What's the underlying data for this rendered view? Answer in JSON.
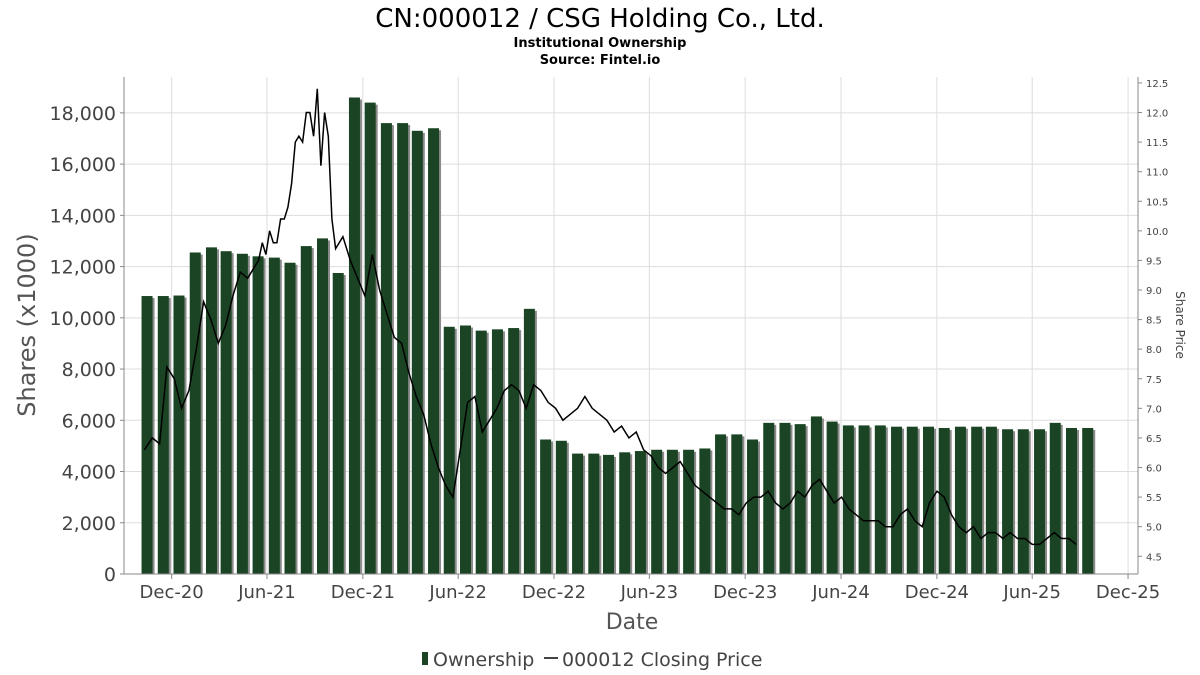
{
  "chart_data": {
    "type": "bar",
    "title": "CN:000012 / CSG Holding Co., Ltd.",
    "subtitle_lines": [
      "Institutional Ownership",
      "Source: Fintel.io"
    ],
    "xlabel": "Date",
    "ylabel": "Shares (x1000)",
    "y2label": "Share Price",
    "ylim": [
      0,
      19400
    ],
    "y2lim": [
      4.2,
      12.6
    ],
    "xlim": [
      "2020-09-01",
      "2025-12-20"
    ],
    "y_ticks": [
      0,
      2000,
      4000,
      6000,
      8000,
      10000,
      12000,
      14000,
      16000,
      18000
    ],
    "y_tick_labels": [
      "0",
      "2,000",
      "4,000",
      "6,000",
      "8,000",
      "10,000",
      "12,000",
      "14,000",
      "16,000",
      "18,000"
    ],
    "y2_ticks": [
      4.5,
      5.0,
      5.5,
      6.0,
      6.5,
      7.0,
      7.5,
      8.0,
      8.5,
      9.0,
      9.5,
      10.0,
      10.5,
      11.0,
      11.5,
      12.0,
      12.5
    ],
    "y2_tick_labels": [
      "4.5",
      "5.0",
      "5.5",
      "6.0",
      "6.5",
      "7.0",
      "7.5",
      "8.0",
      "8.5",
      "9.0",
      "9.5",
      "10.0",
      "10.5",
      "11.0",
      "11.5",
      "12.0",
      "12.5"
    ],
    "x_ticks": [
      "2020-12-01",
      "2021-06-01",
      "2021-12-01",
      "2022-06-01",
      "2022-12-01",
      "2023-06-01",
      "2023-12-01",
      "2024-06-01",
      "2024-12-01",
      "2025-06-01",
      "2025-12-01"
    ],
    "x_tick_labels": [
      "Dec-20",
      "Jun-21",
      "Dec-21",
      "Jun-22",
      "Dec-22",
      "Jun-23",
      "Dec-23",
      "Jun-24",
      "Dec-24",
      "Jun-25",
      "Dec-25"
    ],
    "grid": true,
    "legend_position": "bottom",
    "colors": {
      "bar": "#1a4423",
      "bar_shadow": "#8a8a8a",
      "line": "#000000",
      "grid": "#dddddd"
    },
    "series": [
      {
        "name": "Ownership",
        "kind": "bar",
        "axis": "left",
        "x": [
          "2020-10-15",
          "2020-11-15",
          "2020-12-15",
          "2021-01-15",
          "2021-02-15",
          "2021-03-15",
          "2021-04-15",
          "2021-05-15",
          "2021-06-15",
          "2021-07-15",
          "2021-08-15",
          "2021-09-15",
          "2021-10-15",
          "2021-11-15",
          "2021-12-15",
          "2022-01-15",
          "2022-02-15",
          "2022-03-15",
          "2022-04-15",
          "2022-05-15",
          "2022-06-15",
          "2022-07-15",
          "2022-08-15",
          "2022-09-15",
          "2022-10-15",
          "2022-11-15",
          "2022-12-15",
          "2023-01-15",
          "2023-02-15",
          "2023-03-15",
          "2023-04-15",
          "2023-05-15",
          "2023-06-15",
          "2023-07-15",
          "2023-08-15",
          "2023-09-15",
          "2023-10-15",
          "2023-11-15",
          "2023-12-15",
          "2024-01-15",
          "2024-02-15",
          "2024-03-15",
          "2024-04-15",
          "2024-05-15",
          "2024-06-15",
          "2024-07-15",
          "2024-08-15",
          "2024-09-15",
          "2024-10-15",
          "2024-11-15",
          "2024-12-15",
          "2025-01-15",
          "2025-02-15",
          "2025-03-15",
          "2025-04-15",
          "2025-05-15",
          "2025-06-15",
          "2025-07-15",
          "2025-08-15",
          "2025-09-15"
        ],
        "values": [
          10850,
          10850,
          10870,
          12550,
          12750,
          12600,
          12500,
          12400,
          12350,
          12150,
          12800,
          13100,
          11750,
          18600,
          18400,
          17600,
          17600,
          17300,
          17400,
          9650,
          9700,
          9500,
          9550,
          9600,
          10350,
          5250,
          5200,
          4700,
          4700,
          4650,
          4750,
          4800,
          4850,
          4850,
          4850,
          4900,
          5450,
          5450,
          5250,
          5900,
          5900,
          5850,
          6150,
          5950,
          5800,
          5800,
          5800,
          5750,
          5750,
          5750,
          5700,
          5750,
          5750,
          5750,
          5650,
          5650,
          5650,
          5900,
          5700,
          5700
        ]
      },
      {
        "name": "000012 Closing Price",
        "kind": "line",
        "axis": "right",
        "x": [
          "2020-10-10",
          "2020-10-25",
          "2020-11-08",
          "2020-11-22",
          "2020-12-06",
          "2020-12-20",
          "2021-01-03",
          "2021-01-17",
          "2021-01-31",
          "2021-02-14",
          "2021-02-28",
          "2021-03-14",
          "2021-03-28",
          "2021-04-11",
          "2021-04-25",
          "2021-05-09",
          "2021-05-16",
          "2021-05-23",
          "2021-05-30",
          "2021-06-06",
          "2021-06-13",
          "2021-06-20",
          "2021-06-27",
          "2021-07-04",
          "2021-07-11",
          "2021-07-18",
          "2021-07-25",
          "2021-08-01",
          "2021-08-08",
          "2021-08-15",
          "2021-08-22",
          "2021-08-29",
          "2021-09-05",
          "2021-09-12",
          "2021-09-19",
          "2021-09-26",
          "2021-10-03",
          "2021-10-10",
          "2021-10-24",
          "2021-11-07",
          "2021-11-21",
          "2021-12-05",
          "2021-12-19",
          "2022-01-02",
          "2022-01-16",
          "2022-01-30",
          "2022-02-13",
          "2022-02-27",
          "2022-03-13",
          "2022-03-27",
          "2022-04-10",
          "2022-04-24",
          "2022-05-08",
          "2022-05-22",
          "2022-06-05",
          "2022-06-19",
          "2022-07-03",
          "2022-07-17",
          "2022-07-31",
          "2022-08-14",
          "2022-08-28",
          "2022-09-11",
          "2022-09-25",
          "2022-10-09",
          "2022-10-23",
          "2022-11-06",
          "2022-11-20",
          "2022-12-04",
          "2022-12-18",
          "2023-01-01",
          "2023-01-15",
          "2023-01-29",
          "2023-02-12",
          "2023-02-26",
          "2023-03-12",
          "2023-03-26",
          "2023-04-09",
          "2023-04-23",
          "2023-05-07",
          "2023-05-21",
          "2023-06-04",
          "2023-06-18",
          "2023-07-02",
          "2023-07-16",
          "2023-07-30",
          "2023-08-13",
          "2023-08-27",
          "2023-09-10",
          "2023-09-24",
          "2023-10-08",
          "2023-10-22",
          "2023-11-05",
          "2023-11-19",
          "2023-12-03",
          "2023-12-17",
          "2023-12-31",
          "2024-01-14",
          "2024-01-28",
          "2024-02-11",
          "2024-02-25",
          "2024-03-10",
          "2024-03-24",
          "2024-04-07",
          "2024-04-21",
          "2024-05-05",
          "2024-05-19",
          "2024-06-02",
          "2024-06-16",
          "2024-06-30",
          "2024-07-14",
          "2024-07-28",
          "2024-08-11",
          "2024-08-25",
          "2024-09-08",
          "2024-09-22",
          "2024-10-06",
          "2024-10-20",
          "2024-11-03",
          "2024-11-17",
          "2024-12-01",
          "2024-12-15",
          "2024-12-29",
          "2025-01-12",
          "2025-01-26",
          "2025-02-09",
          "2025-02-23",
          "2025-03-09",
          "2025-03-23",
          "2025-04-06",
          "2025-04-20",
          "2025-05-04",
          "2025-05-18",
          "2025-06-01",
          "2025-06-15",
          "2025-06-29",
          "2025-07-13",
          "2025-07-27",
          "2025-08-10",
          "2025-08-24"
        ],
        "values": [
          6.3,
          6.5,
          6.4,
          7.7,
          7.5,
          7.0,
          7.3,
          8.0,
          8.8,
          8.5,
          8.1,
          8.4,
          8.9,
          9.3,
          9.2,
          9.4,
          9.5,
          9.8,
          9.6,
          10.0,
          9.8,
          9.8,
          10.2,
          10.2,
          10.4,
          10.8,
          11.5,
          11.6,
          11.5,
          12.0,
          12.0,
          11.6,
          12.4,
          11.1,
          12.0,
          11.6,
          10.2,
          9.7,
          9.9,
          9.5,
          9.2,
          8.9,
          9.6,
          9.0,
          8.6,
          8.2,
          8.1,
          7.6,
          7.2,
          6.9,
          6.4,
          6.0,
          5.7,
          5.5,
          6.3,
          7.1,
          7.2,
          6.6,
          6.8,
          7.0,
          7.3,
          7.4,
          7.3,
          7.0,
          7.4,
          7.3,
          7.1,
          7.0,
          6.8,
          6.9,
          7.0,
          7.2,
          7.0,
          6.9,
          6.8,
          6.6,
          6.7,
          6.5,
          6.6,
          6.3,
          6.2,
          6.0,
          5.9,
          6.0,
          6.1,
          5.9,
          5.7,
          5.6,
          5.5,
          5.4,
          5.3,
          5.3,
          5.2,
          5.4,
          5.5,
          5.5,
          5.6,
          5.4,
          5.3,
          5.4,
          5.6,
          5.5,
          5.7,
          5.8,
          5.6,
          5.4,
          5.5,
          5.3,
          5.2,
          5.1,
          5.1,
          5.1,
          5.0,
          5.0,
          5.2,
          5.3,
          5.1,
          5.0,
          5.4,
          5.6,
          5.5,
          5.2,
          5.0,
          4.9,
          5.0,
          4.8,
          4.9,
          4.9,
          4.8,
          4.9,
          4.8,
          4.8,
          4.7,
          4.7,
          4.8,
          4.9,
          4.8,
          4.8,
          4.7
        ]
      }
    ]
  }
}
